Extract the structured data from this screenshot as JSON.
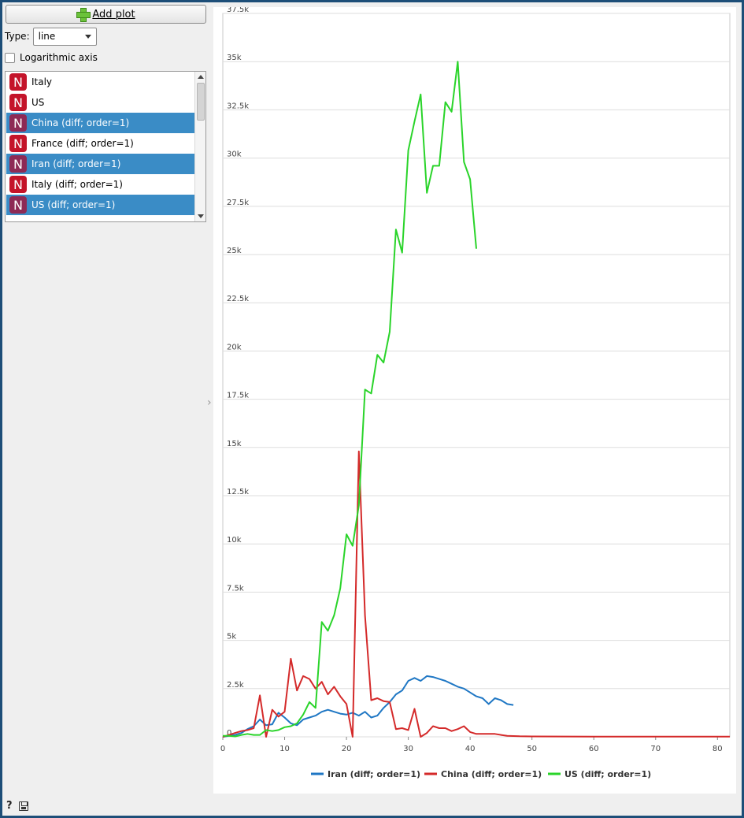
{
  "left_panel": {
    "add_plot_label": "Add plot",
    "type_label": "Type:",
    "type_value": "line",
    "log_axis_label": "Logarithmic axis",
    "badge_letter": "N",
    "items": [
      {
        "label": "Italy",
        "selected": false
      },
      {
        "label": "US",
        "selected": false
      },
      {
        "label": "China (diff; order=1)",
        "selected": true
      },
      {
        "label": "France (diff; order=1)",
        "selected": false
      },
      {
        "label": "Iran (diff; order=1)",
        "selected": true
      },
      {
        "label": "Italy (diff; order=1)",
        "selected": false
      },
      {
        "label": "US (diff; order=1)",
        "selected": true
      }
    ]
  },
  "chart_data": {
    "type": "line",
    "xlim": [
      0,
      82
    ],
    "ylim": [
      0,
      37500
    ],
    "x_ticks": [
      0,
      10,
      20,
      30,
      40,
      50,
      60,
      70,
      80
    ],
    "y_ticks": [
      0,
      2500,
      5000,
      7500,
      10000,
      12500,
      15000,
      17500,
      20000,
      22500,
      25000,
      27500,
      30000,
      32500,
      35000,
      37500
    ],
    "y_tick_labels": [
      "0",
      "2.5k",
      "5k",
      "7.5k",
      "10k",
      "12.5k",
      "15k",
      "17.5k",
      "20k",
      "22.5k",
      "25k",
      "27.5k",
      "30k",
      "32.5k",
      "35k",
      "37.5k"
    ],
    "grid": true,
    "legend": "bottom",
    "series": [
      {
        "name": "Iran (diff; order=1)",
        "color": "#1f77c4",
        "points": [
          [
            0,
            0
          ],
          [
            1,
            50
          ],
          [
            2,
            100
          ],
          [
            3,
            200
          ],
          [
            4,
            400
          ],
          [
            5,
            550
          ],
          [
            6,
            900
          ],
          [
            7,
            600
          ],
          [
            8,
            650
          ],
          [
            9,
            1250
          ],
          [
            10,
            1000
          ],
          [
            11,
            700
          ],
          [
            12,
            600
          ],
          [
            13,
            900
          ],
          [
            14,
            1000
          ],
          [
            15,
            1100
          ],
          [
            16,
            1300
          ],
          [
            17,
            1400
          ],
          [
            18,
            1300
          ],
          [
            19,
            1200
          ],
          [
            20,
            1150
          ],
          [
            21,
            1250
          ],
          [
            22,
            1100
          ],
          [
            23,
            1300
          ],
          [
            24,
            1000
          ],
          [
            25,
            1100
          ],
          [
            26,
            1500
          ],
          [
            27,
            1800
          ],
          [
            28,
            2200
          ],
          [
            29,
            2400
          ],
          [
            30,
            2900
          ],
          [
            31,
            3050
          ],
          [
            32,
            2900
          ],
          [
            33,
            3150
          ],
          [
            34,
            3100
          ],
          [
            35,
            3000
          ],
          [
            36,
            2900
          ],
          [
            37,
            2750
          ],
          [
            38,
            2600
          ],
          [
            39,
            2500
          ],
          [
            40,
            2300
          ],
          [
            41,
            2100
          ],
          [
            42,
            2000
          ],
          [
            43,
            1700
          ],
          [
            44,
            2000
          ],
          [
            45,
            1900
          ],
          [
            46,
            1700
          ],
          [
            47,
            1650
          ]
        ]
      },
      {
        "name": "China (diff; order=1)",
        "color": "#d42a2a",
        "points": [
          [
            0,
            0
          ],
          [
            1,
            100
          ],
          [
            2,
            200
          ],
          [
            3,
            300
          ],
          [
            4,
            350
          ],
          [
            5,
            450
          ],
          [
            6,
            2150
          ],
          [
            7,
            0
          ],
          [
            8,
            1400
          ],
          [
            9,
            1050
          ],
          [
            10,
            1300
          ],
          [
            11,
            4050
          ],
          [
            12,
            2400
          ],
          [
            13,
            3150
          ],
          [
            14,
            3000
          ],
          [
            15,
            2500
          ],
          [
            16,
            2850
          ],
          [
            17,
            2200
          ],
          [
            18,
            2600
          ],
          [
            19,
            2100
          ],
          [
            20,
            1700
          ],
          [
            21,
            0
          ],
          [
            22,
            14800
          ],
          [
            23,
            6300
          ],
          [
            24,
            1900
          ],
          [
            25,
            2000
          ],
          [
            26,
            1850
          ],
          [
            27,
            1800
          ],
          [
            28,
            400
          ],
          [
            29,
            450
          ],
          [
            30,
            350
          ],
          [
            31,
            1450
          ],
          [
            32,
            0
          ],
          [
            33,
            200
          ],
          [
            34,
            550
          ],
          [
            35,
            450
          ],
          [
            36,
            450
          ],
          [
            37,
            300
          ],
          [
            38,
            400
          ],
          [
            39,
            550
          ],
          [
            40,
            250
          ],
          [
            41,
            150
          ],
          [
            42,
            150
          ],
          [
            43,
            150
          ],
          [
            44,
            150
          ],
          [
            45,
            100
          ],
          [
            46,
            50
          ],
          [
            47,
            40
          ],
          [
            48,
            30
          ],
          [
            50,
            20
          ],
          [
            55,
            15
          ],
          [
            60,
            10
          ],
          [
            70,
            10
          ],
          [
            82,
            10
          ]
        ]
      },
      {
        "name": "US (diff; order=1)",
        "color": "#2ad42a",
        "points": [
          [
            0,
            50
          ],
          [
            1,
            50
          ],
          [
            2,
            20
          ],
          [
            3,
            100
          ],
          [
            4,
            150
          ],
          [
            5,
            100
          ],
          [
            6,
            100
          ],
          [
            7,
            350
          ],
          [
            8,
            300
          ],
          [
            9,
            350
          ],
          [
            10,
            500
          ],
          [
            11,
            550
          ],
          [
            12,
            700
          ],
          [
            13,
            1150
          ],
          [
            14,
            1800
          ],
          [
            15,
            1500
          ],
          [
            16,
            5950
          ],
          [
            17,
            5500
          ],
          [
            18,
            6300
          ],
          [
            19,
            7700
          ],
          [
            20,
            10500
          ],
          [
            21,
            9900
          ],
          [
            22,
            12000
          ],
          [
            23,
            18000
          ],
          [
            24,
            17800
          ],
          [
            25,
            19800
          ],
          [
            26,
            19400
          ],
          [
            27,
            21000
          ],
          [
            28,
            26300
          ],
          [
            29,
            25100
          ],
          [
            30,
            30400
          ],
          [
            31,
            31900
          ],
          [
            32,
            33300
          ],
          [
            33,
            28200
          ],
          [
            34,
            29600
          ],
          [
            35,
            29600
          ],
          [
            36,
            32900
          ],
          [
            37,
            32400
          ],
          [
            38,
            35000
          ],
          [
            39,
            29800
          ],
          [
            40,
            28900
          ],
          [
            41,
            25300
          ]
        ]
      }
    ]
  }
}
